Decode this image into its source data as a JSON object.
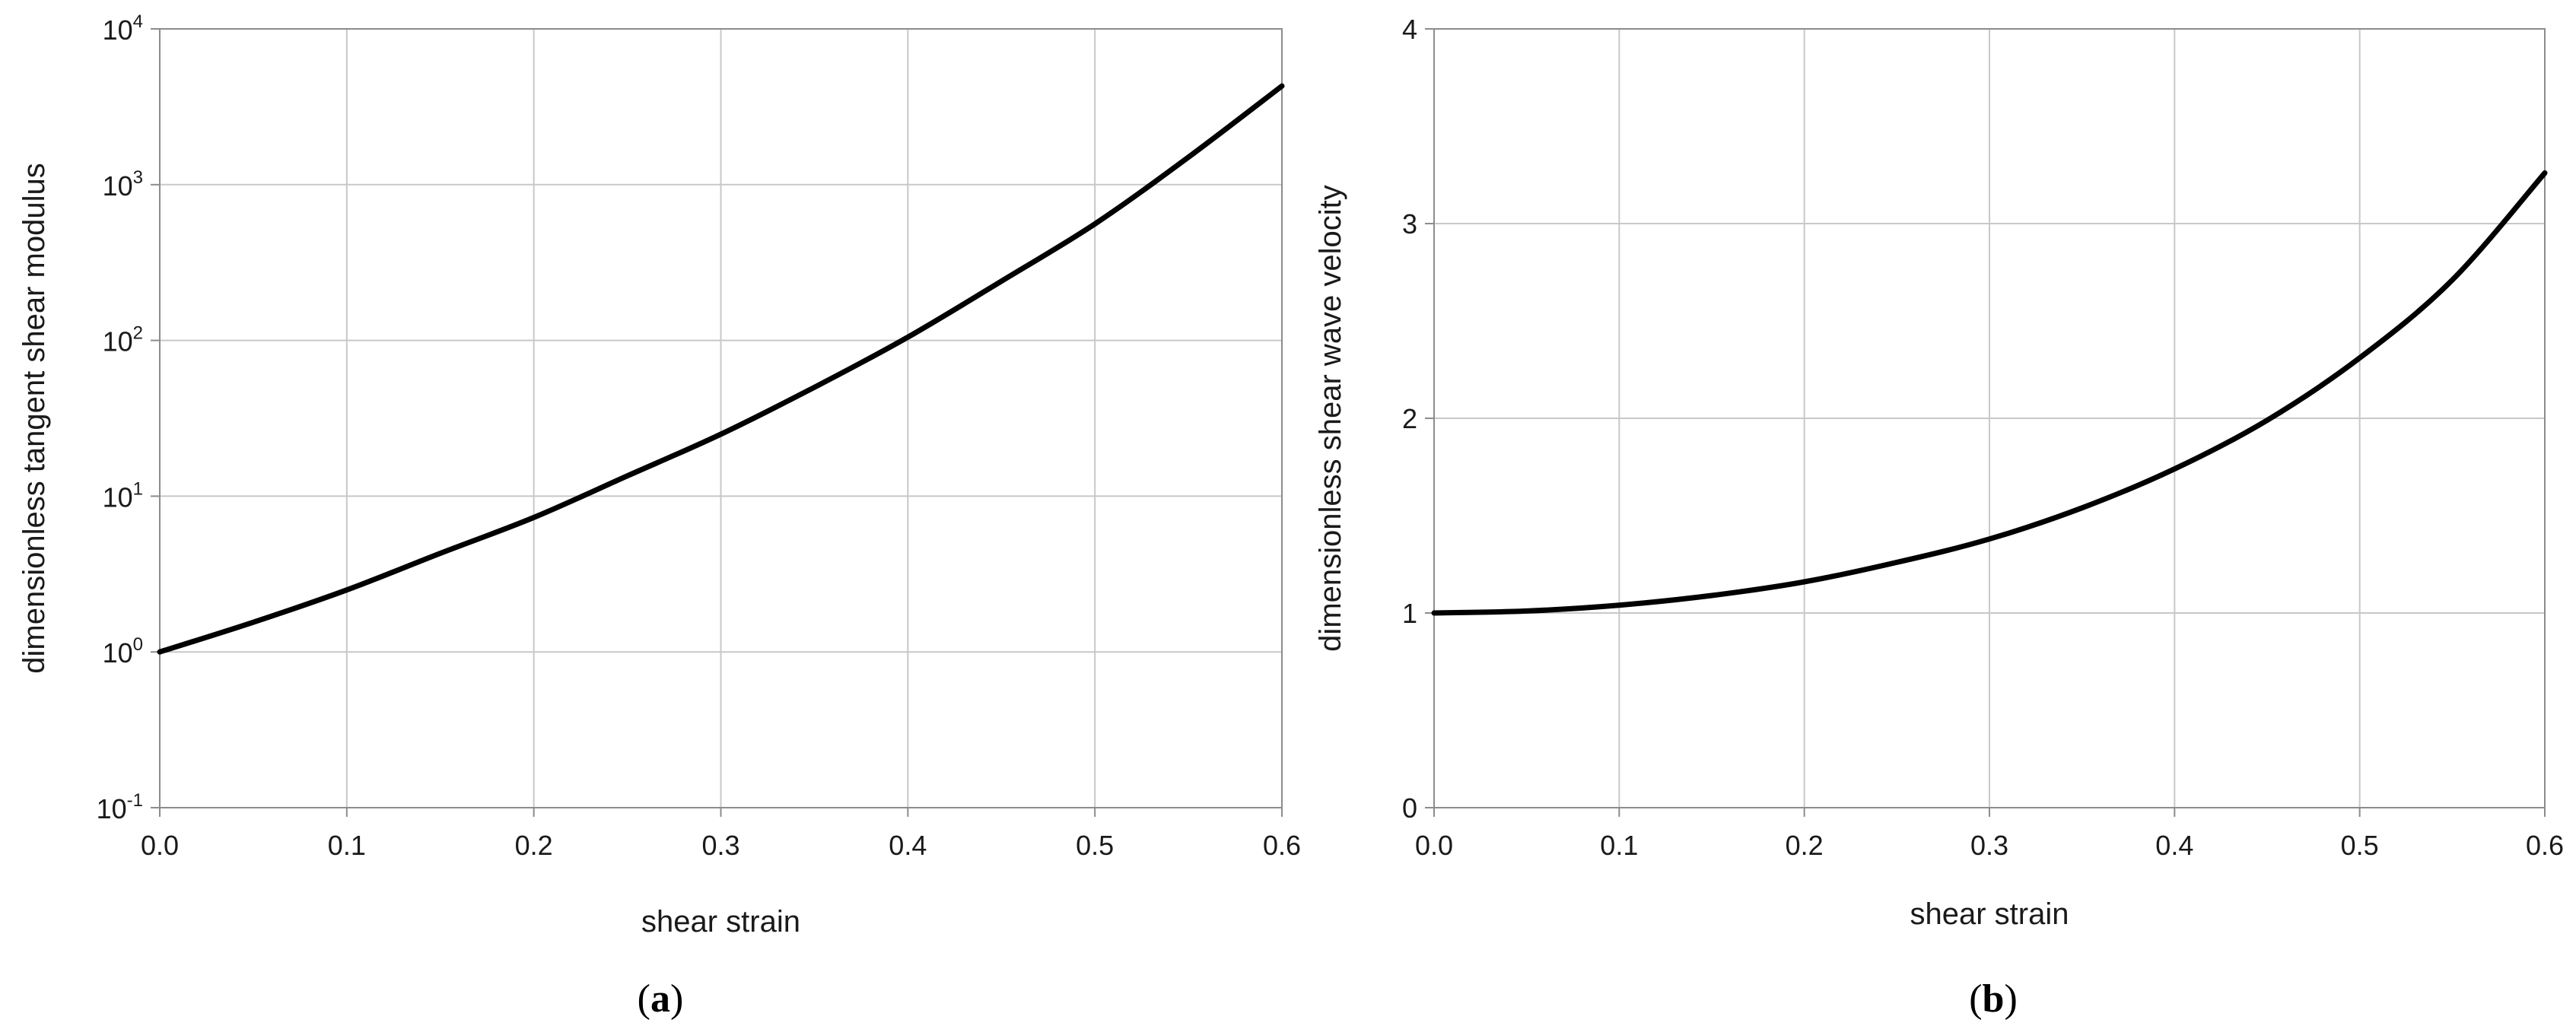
{
  "chart_data": [
    {
      "type": "line",
      "panel_label": "a",
      "xlabel": "shear strain",
      "ylabel": "dimensionless tangent shear modulus",
      "xlim": [
        0.0,
        0.6
      ],
      "ylim": [
        0.1,
        10000
      ],
      "yscale": "log",
      "grid": true,
      "x_ticks": [
        "0.0",
        "0.1",
        "0.2",
        "0.3",
        "0.4",
        "0.5",
        "0.6"
      ],
      "y_ticks": [
        {
          "base": "10",
          "exp": "-1"
        },
        {
          "base": "10",
          "exp": "0"
        },
        {
          "base": "10",
          "exp": "1"
        },
        {
          "base": "10",
          "exp": "2"
        },
        {
          "base": "10",
          "exp": "3"
        },
        {
          "base": "10",
          "exp": "4"
        }
      ],
      "series": [
        {
          "x": [
            0.0,
            0.05,
            0.1,
            0.15,
            0.2,
            0.25,
            0.3,
            0.35,
            0.4,
            0.45,
            0.5,
            0.55,
            0.6
          ],
          "values": [
            1.0,
            1.55,
            2.5,
            4.3,
            7.3,
            13.5,
            25,
            50,
            105,
            240,
            560,
            1500,
            4300
          ]
        }
      ]
    },
    {
      "type": "line",
      "panel_label": "b",
      "xlabel": "shear strain",
      "ylabel": "dimensionless shear wave velocity",
      "xlim": [
        0.0,
        0.6
      ],
      "ylim": [
        0,
        4
      ],
      "grid": true,
      "x_ticks": [
        "0.0",
        "0.1",
        "0.2",
        "0.3",
        "0.4",
        "0.5",
        "0.6"
      ],
      "y_ticks": [
        "0",
        "1",
        "2",
        "3",
        "4"
      ],
      "series": [
        {
          "x": [
            0.0,
            0.05,
            0.1,
            0.15,
            0.2,
            0.25,
            0.3,
            0.35,
            0.4,
            0.45,
            0.5,
            0.55,
            0.6
          ],
          "values": [
            1.0,
            1.01,
            1.04,
            1.09,
            1.16,
            1.26,
            1.38,
            1.54,
            1.74,
            1.99,
            2.31,
            2.71,
            3.26
          ]
        }
      ]
    }
  ]
}
